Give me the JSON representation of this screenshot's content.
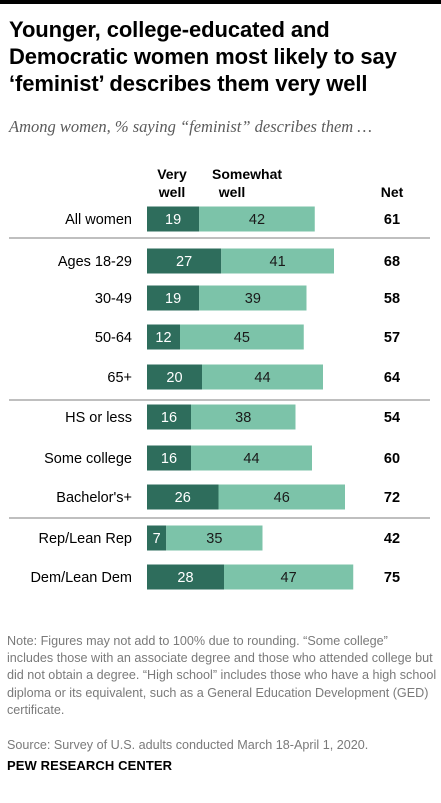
{
  "colors": {
    "very_well": "#2e6d5c",
    "somewhat_well": "#7cc3a9",
    "divider": "#999999",
    "text": "#000000"
  },
  "header": {
    "title": "Younger, college-educated and Democratic women most likely to say ‘feminist’ describes them very well",
    "subtitle": "Among women, % saying “feminist” describes them …"
  },
  "chart_data": {
    "type": "bar",
    "stacked": true,
    "orientation": "horizontal",
    "column_headers": {
      "very_well": "Very well",
      "somewhat_well": "Somewhat well",
      "net": "Net"
    },
    "categories": [
      "All women",
      "Ages 18-29",
      "30-49",
      "50-64",
      "65+",
      "HS or less",
      "Some college",
      "Bachelor's+",
      "Rep/Lean Rep",
      "Dem/Lean Dem"
    ],
    "series": [
      {
        "name": "Very well",
        "values": [
          19,
          27,
          19,
          12,
          20,
          16,
          16,
          26,
          7,
          28
        ]
      },
      {
        "name": "Somewhat well",
        "values": [
          42,
          41,
          39,
          45,
          44,
          38,
          44,
          46,
          35,
          47
        ]
      }
    ],
    "net": [
      61,
      68,
      58,
      57,
      64,
      54,
      60,
      72,
      42,
      75
    ]
  },
  "footer": {
    "note": "Note: Figures may not add to 100% due to rounding. “Some college” includes those with an associate degree and those who attended college but did not obtain a degree. “High school” includes those who have a high school diploma or its equivalent, such as a General Education Development (GED) certificate.",
    "source": "Source: Survey of U.S. adults conducted March 18-April 1, 2020.",
    "brand": "PEW RESEARCH CENTER"
  }
}
